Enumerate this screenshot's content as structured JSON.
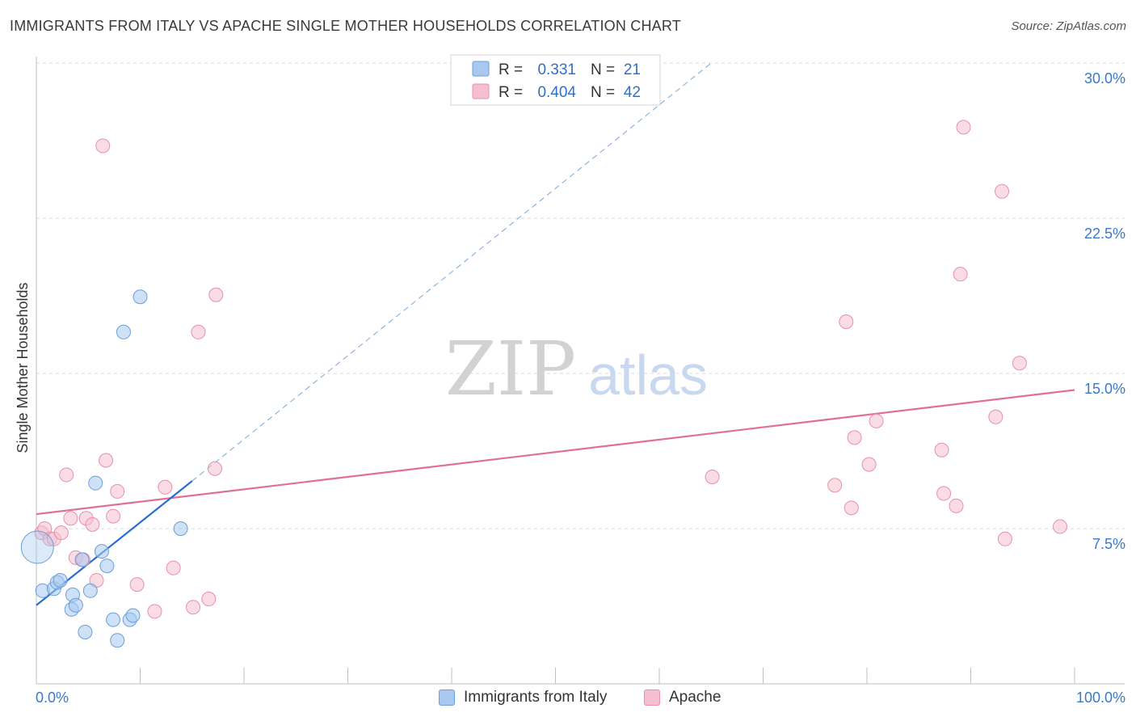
{
  "title": "IMMIGRANTS FROM ITALY VS APACHE SINGLE MOTHER HOUSEHOLDS CORRELATION CHART",
  "source": "Source: ZipAtlas.com",
  "watermark": {
    "zip": "ZIP",
    "atlas": "atlas"
  },
  "legend_top": [
    {
      "r_label": "R =",
      "r_value": "0.331",
      "n_label": "N =",
      "n_value": "21"
    },
    {
      "r_label": "R =",
      "r_value": "0.404",
      "n_label": "N =",
      "n_value": "42"
    }
  ],
  "legend_bottom": [
    "Immigrants from Italy",
    "Apache"
  ],
  "colors": {
    "blue_fill": "#a8c8f0",
    "blue_stroke": "#6a9fd8",
    "blue_line": "#2a6dd0",
    "pink_fill": "#f6bfd0",
    "pink_stroke": "#e890ab",
    "pink_line": "#e06f98",
    "tick_label": "#3b78c8",
    "value_text": "#2f6fca",
    "grid": "#d9d9d9"
  },
  "chart_data": {
    "type": "scatter",
    "xlabel": "",
    "ylabel": "Single Mother Households",
    "xlim": [
      0,
      100
    ],
    "ylim": [
      0,
      31
    ],
    "x_tick_labels": [
      "0.0%",
      "100.0%"
    ],
    "y_ticks": [
      7.5,
      15.0,
      22.5,
      30.0
    ],
    "y_tick_labels": [
      "7.5%",
      "15.0%",
      "22.5%",
      "30.0%"
    ],
    "series": [
      {
        "name": "Immigrants from Italy",
        "r": 0.331,
        "n": 21,
        "points": [
          [
            0.6,
            4.5
          ],
          [
            1.7,
            4.6
          ],
          [
            2.0,
            4.9
          ],
          [
            2.3,
            5.0
          ],
          [
            3.4,
            3.6
          ],
          [
            3.5,
            4.3
          ],
          [
            3.8,
            3.8
          ],
          [
            4.4,
            6.0
          ],
          [
            4.7,
            2.5
          ],
          [
            5.2,
            4.5
          ],
          [
            5.7,
            9.7
          ],
          [
            6.3,
            6.4
          ],
          [
            6.8,
            5.7
          ],
          [
            7.4,
            3.1
          ],
          [
            7.8,
            2.1
          ],
          [
            8.4,
            17.0
          ],
          [
            9.0,
            3.1
          ],
          [
            9.3,
            3.3
          ],
          [
            10.0,
            18.7
          ],
          [
            13.9,
            7.5
          ],
          [
            0.1,
            6.6
          ]
        ],
        "trend_solid": [
          [
            0.0,
            3.8
          ],
          [
            15.0,
            9.8
          ]
        ],
        "trend_dashed": [
          [
            15.0,
            9.8
          ],
          [
            65.0,
            30.0
          ]
        ]
      },
      {
        "name": "Apache",
        "r": 0.404,
        "n": 42,
        "points": [
          [
            0.5,
            7.3
          ],
          [
            0.8,
            7.5
          ],
          [
            1.3,
            7.0
          ],
          [
            1.7,
            7.0
          ],
          [
            2.4,
            7.3
          ],
          [
            2.9,
            10.1
          ],
          [
            3.3,
            8.0
          ],
          [
            3.8,
            6.1
          ],
          [
            4.5,
            6.0
          ],
          [
            4.8,
            8.0
          ],
          [
            5.4,
            7.7
          ],
          [
            5.8,
            5.0
          ],
          [
            6.4,
            26.0
          ],
          [
            6.7,
            10.8
          ],
          [
            7.4,
            8.1
          ],
          [
            7.8,
            9.3
          ],
          [
            9.7,
            4.8
          ],
          [
            11.4,
            3.5
          ],
          [
            12.4,
            9.5
          ],
          [
            13.2,
            5.6
          ],
          [
            15.1,
            3.7
          ],
          [
            15.6,
            17.0
          ],
          [
            16.6,
            4.1
          ],
          [
            17.2,
            10.4
          ],
          [
            17.3,
            18.8
          ],
          [
            65.1,
            10.0
          ],
          [
            76.9,
            9.6
          ],
          [
            78.0,
            17.5
          ],
          [
            78.5,
            8.5
          ],
          [
            78.8,
            11.9
          ],
          [
            80.2,
            10.6
          ],
          [
            80.9,
            12.7
          ],
          [
            87.2,
            11.3
          ],
          [
            87.4,
            9.2
          ],
          [
            88.6,
            8.6
          ],
          [
            89.0,
            19.8
          ],
          [
            89.3,
            26.9
          ],
          [
            92.4,
            12.9
          ],
          [
            93.0,
            23.8
          ],
          [
            93.3,
            7.0
          ],
          [
            94.7,
            15.5
          ],
          [
            98.6,
            7.6
          ]
        ],
        "trend_solid": [
          [
            0.0,
            8.2
          ],
          [
            100.0,
            14.2
          ]
        ]
      }
    ]
  }
}
